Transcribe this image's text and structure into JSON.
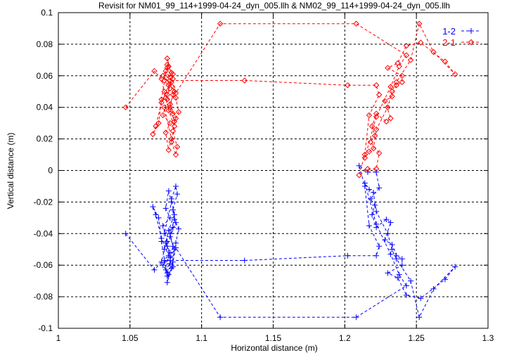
{
  "chart_data": {
    "type": "line",
    "title": "Revisit for NM01_99_114+1999-04-24_dyn_005.llh & NM02_99_114+1999-04-24_dyn_005.llh",
    "xlabel": "Horizontal distance (m)",
    "ylabel": "Vertical distance (m)",
    "xlim": [
      1,
      1.3
    ],
    "ylim": [
      -0.1,
      0.1
    ],
    "xticks": [
      1,
      1.05,
      1.1,
      1.15,
      1.2,
      1.25,
      1.3
    ],
    "xtick_labels": [
      "1",
      "1.05",
      "1.1",
      "1.15",
      "1.2",
      "1.25",
      "1.3"
    ],
    "yticks": [
      -0.1,
      -0.08,
      -0.06,
      -0.04,
      -0.02,
      0,
      0.02,
      0.04,
      0.06,
      0.08,
      0.1
    ],
    "ytick_labels": [
      "-0.1",
      "-0.08",
      "-0.06",
      "-0.04",
      "-0.02",
      "0",
      "0.02",
      "0.04",
      "0.06",
      "0.08",
      "0.1"
    ],
    "grid": true,
    "legend_position": "top-right",
    "series": [
      {
        "name": "1-2",
        "color": "#0000ff",
        "marker": "plus",
        "points": [
          [
            1.047,
            -0.04
          ],
          [
            1.067,
            -0.063
          ],
          [
            1.072,
            -0.058
          ],
          [
            1.074,
            -0.05
          ],
          [
            1.076,
            -0.045
          ],
          [
            1.073,
            -0.035
          ],
          [
            1.078,
            -0.03
          ],
          [
            1.075,
            -0.024
          ],
          [
            1.077,
            -0.013
          ],
          [
            1.079,
            -0.02
          ],
          [
            1.074,
            -0.04
          ],
          [
            1.08,
            -0.036
          ],
          [
            1.076,
            -0.048
          ],
          [
            1.078,
            -0.055
          ],
          [
            1.073,
            -0.06
          ],
          [
            1.077,
            -0.066
          ],
          [
            1.076,
            -0.071
          ],
          [
            1.079,
            -0.062
          ],
          [
            1.081,
            -0.05
          ],
          [
            1.078,
            -0.042
          ],
          [
            1.082,
            -0.033
          ],
          [
            1.08,
            -0.025
          ],
          [
            1.083,
            -0.015
          ],
          [
            1.082,
            -0.01
          ],
          [
            1.079,
            -0.018
          ],
          [
            1.081,
            -0.028
          ],
          [
            1.077,
            -0.038
          ],
          [
            1.075,
            -0.046
          ],
          [
            1.078,
            -0.052
          ],
          [
            1.074,
            -0.057
          ],
          [
            1.08,
            -0.061
          ],
          [
            1.076,
            -0.067
          ],
          [
            1.072,
            -0.045
          ],
          [
            1.07,
            -0.03
          ],
          [
            1.066,
            -0.023
          ],
          [
            1.068,
            -0.028
          ],
          [
            1.072,
            -0.043
          ],
          [
            1.077,
            -0.054
          ],
          [
            1.075,
            -0.063
          ],
          [
            1.078,
            -0.059
          ],
          [
            1.082,
            -0.046
          ],
          [
            1.084,
            -0.037
          ],
          [
            1.081,
            -0.031
          ],
          [
            1.078,
            -0.04
          ],
          [
            1.08,
            -0.048
          ],
          [
            1.078,
            -0.057
          ],
          [
            1.13,
            -0.057
          ],
          [
            1.202,
            -0.054
          ],
          [
            1.222,
            -0.054
          ],
          [
            1.224,
            -0.048
          ],
          [
            1.217,
            -0.035
          ],
          [
            1.214,
            -0.01
          ],
          [
            1.21,
            0.003
          ],
          [
            1.216,
            -0.001
          ],
          [
            1.222,
            -0.001
          ],
          [
            1.224,
            -0.011
          ],
          [
            1.218,
            -0.018
          ],
          [
            1.221,
            -0.022
          ],
          [
            1.219,
            -0.028
          ],
          [
            1.222,
            -0.036
          ],
          [
            1.229,
            -0.031
          ],
          [
            1.232,
            -0.033
          ],
          [
            1.228,
            -0.044
          ],
          [
            1.233,
            -0.047
          ],
          [
            1.236,
            -0.054
          ],
          [
            1.24,
            -0.056
          ],
          [
            1.24,
            -0.06
          ],
          [
            1.23,
            -0.065
          ],
          [
            1.237,
            -0.068
          ],
          [
            1.243,
            -0.079
          ],
          [
            1.253,
            -0.081
          ],
          [
            1.27,
            -0.069
          ],
          [
            1.277,
            -0.061
          ],
          [
            1.262,
            -0.075
          ],
          [
            1.252,
            -0.093
          ],
          [
            1.246,
            -0.07
          ],
          [
            1.236,
            -0.056
          ],
          [
            1.233,
            -0.05
          ],
          [
            1.23,
            -0.04
          ],
          [
            1.222,
            -0.026
          ],
          [
            1.22,
            -0.014
          ],
          [
            1.217,
            -0.012
          ],
          [
            1.214,
            -0.008
          ],
          [
            1.222,
            -0.034
          ],
          [
            1.232,
            -0.053
          ],
          [
            1.238,
            -0.066
          ],
          [
            1.243,
            -0.073
          ],
          [
            1.208,
            -0.093
          ],
          [
            1.113,
            -0.093
          ],
          [
            1.082,
            -0.049
          ],
          [
            1.08,
            -0.058
          ],
          [
            1.076,
            -0.065
          ]
        ]
      },
      {
        "name": "2-1",
        "color": "#ff0000",
        "marker": "diamond",
        "points": [
          [
            1.047,
            0.04
          ],
          [
            1.067,
            0.063
          ],
          [
            1.072,
            0.058
          ],
          [
            1.074,
            0.05
          ],
          [
            1.076,
            0.045
          ],
          [
            1.073,
            0.035
          ],
          [
            1.078,
            0.03
          ],
          [
            1.075,
            0.024
          ],
          [
            1.077,
            0.013
          ],
          [
            1.079,
            0.02
          ],
          [
            1.074,
            0.04
          ],
          [
            1.08,
            0.036
          ],
          [
            1.076,
            0.048
          ],
          [
            1.078,
            0.055
          ],
          [
            1.073,
            0.06
          ],
          [
            1.077,
            0.066
          ],
          [
            1.076,
            0.071
          ],
          [
            1.079,
            0.062
          ],
          [
            1.081,
            0.05
          ],
          [
            1.078,
            0.042
          ],
          [
            1.082,
            0.033
          ],
          [
            1.08,
            0.025
          ],
          [
            1.083,
            0.015
          ],
          [
            1.082,
            0.01
          ],
          [
            1.079,
            0.018
          ],
          [
            1.081,
            0.028
          ],
          [
            1.077,
            0.038
          ],
          [
            1.075,
            0.046
          ],
          [
            1.078,
            0.052
          ],
          [
            1.074,
            0.057
          ],
          [
            1.08,
            0.061
          ],
          [
            1.076,
            0.067
          ],
          [
            1.072,
            0.045
          ],
          [
            1.07,
            0.03
          ],
          [
            1.066,
            0.023
          ],
          [
            1.068,
            0.028
          ],
          [
            1.072,
            0.043
          ],
          [
            1.077,
            0.054
          ],
          [
            1.075,
            0.063
          ],
          [
            1.078,
            0.059
          ],
          [
            1.082,
            0.046
          ],
          [
            1.084,
            0.037
          ],
          [
            1.081,
            0.031
          ],
          [
            1.078,
            0.04
          ],
          [
            1.08,
            0.048
          ],
          [
            1.078,
            0.057
          ],
          [
            1.13,
            0.057
          ],
          [
            1.202,
            0.054
          ],
          [
            1.222,
            0.054
          ],
          [
            1.224,
            0.048
          ],
          [
            1.217,
            0.035
          ],
          [
            1.214,
            0.01
          ],
          [
            1.21,
            -0.003
          ],
          [
            1.216,
            0.001
          ],
          [
            1.222,
            0.001
          ],
          [
            1.224,
            0.011
          ],
          [
            1.218,
            0.018
          ],
          [
            1.221,
            0.022
          ],
          [
            1.219,
            0.028
          ],
          [
            1.222,
            0.036
          ],
          [
            1.229,
            0.031
          ],
          [
            1.232,
            0.033
          ],
          [
            1.228,
            0.044
          ],
          [
            1.233,
            0.047
          ],
          [
            1.236,
            0.054
          ],
          [
            1.24,
            0.056
          ],
          [
            1.24,
            0.06
          ],
          [
            1.23,
            0.065
          ],
          [
            1.237,
            0.068
          ],
          [
            1.243,
            0.079
          ],
          [
            1.253,
            0.081
          ],
          [
            1.27,
            0.069
          ],
          [
            1.277,
            0.061
          ],
          [
            1.262,
            0.075
          ],
          [
            1.252,
            0.093
          ],
          [
            1.246,
            0.07
          ],
          [
            1.236,
            0.056
          ],
          [
            1.233,
            0.05
          ],
          [
            1.23,
            0.04
          ],
          [
            1.222,
            0.026
          ],
          [
            1.22,
            0.014
          ],
          [
            1.217,
            0.012
          ],
          [
            1.214,
            0.008
          ],
          [
            1.222,
            0.034
          ],
          [
            1.232,
            0.053
          ],
          [
            1.238,
            0.066
          ],
          [
            1.243,
            0.073
          ],
          [
            1.208,
            0.093
          ],
          [
            1.113,
            0.093
          ],
          [
            1.082,
            0.049
          ],
          [
            1.08,
            0.058
          ],
          [
            1.076,
            0.065
          ]
        ]
      }
    ]
  }
}
